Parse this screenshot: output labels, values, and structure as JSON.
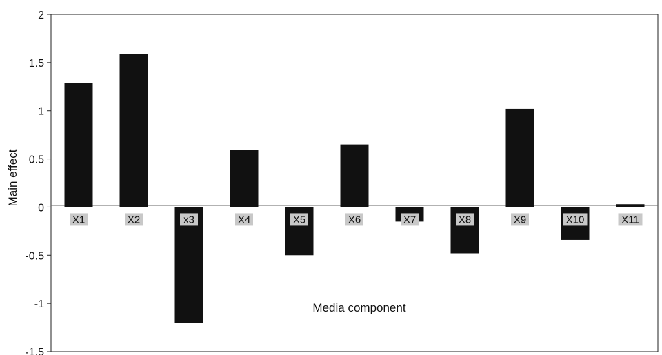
{
  "chart_data": {
    "type": "bar",
    "title": "",
    "xlabel": "Media component",
    "ylabel": "Main effect",
    "ylim": [
      -1.5,
      2
    ],
    "yticks": [
      "-1.5",
      "-1",
      "-0.5",
      "0",
      "0.5",
      "1",
      "1.5",
      "2"
    ],
    "categories": [
      "X1",
      "X2",
      "x3",
      "X4",
      "X5",
      "X6",
      "X7",
      "X8",
      "X9",
      "X10",
      "X11"
    ],
    "values": [
      1.29,
      1.59,
      -1.2,
      0.59,
      -0.5,
      0.65,
      -0.15,
      -0.48,
      1.02,
      -0.34,
      0.03
    ],
    "grid": false,
    "bar_color": "#111111",
    "label_bg_color": "#c8c8c8"
  }
}
